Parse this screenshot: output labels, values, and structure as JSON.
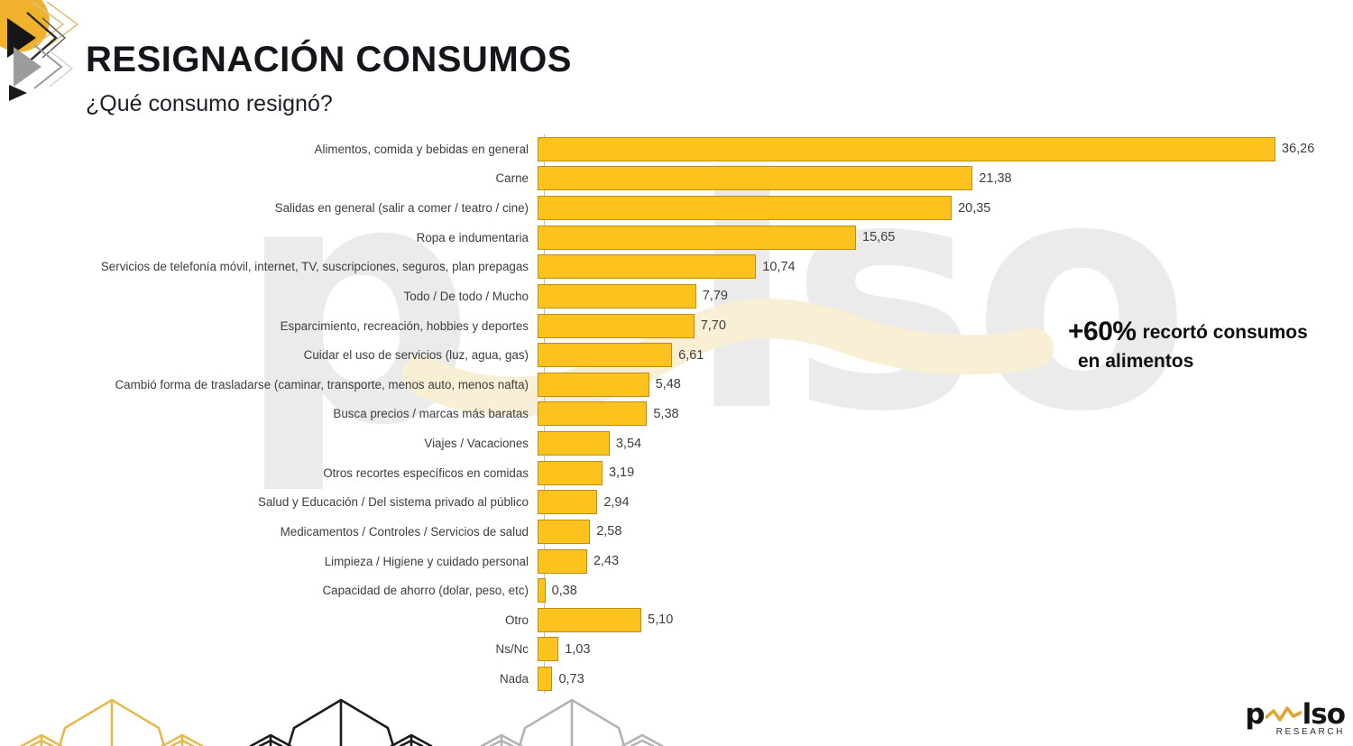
{
  "header": {
    "title": "RESIGNACIÓN CONSUMOS",
    "subtitle": "¿Qué consumo resignó?"
  },
  "annotation": {
    "highlight": "+60%",
    "line1": "recortó consumos",
    "line2": "en alimentos"
  },
  "watermark": {
    "left": "p",
    "right": "lso"
  },
  "brand": {
    "wordmark_left": "p",
    "wordmark_right": "lso",
    "research": "RESEARCH"
  },
  "colors": {
    "bar_fill": "#FCC21D",
    "bar_border": "#BD8E12",
    "axis_line": "#C2C2C2",
    "title_text": "#15151B",
    "label_text": "#3D3D3D",
    "watermark_gray": "#EBEBEB",
    "watermark_wave": "#F8EFD5",
    "brand_gold": "#DFA52F",
    "deco_yellow": "#E7BA4D",
    "deco_black": "#1B1B1B",
    "deco_gray": "#B3B3B3"
  },
  "chart_data": {
    "type": "bar",
    "orientation": "horizontal",
    "title": "RESIGNACIÓN CONSUMOS",
    "question": "¿Qué consumo resignó?",
    "xlim": [
      0,
      36.26
    ],
    "grid": false,
    "legend": false,
    "categories": [
      "Alimentos, comida y bebidas en general",
      "Carne",
      "Salidas en general (salir a comer / teatro / cine)",
      "Ropa e indumentaria",
      "Servicios de telefonía móvil, internet, TV, suscripciones, seguros, plan prepagas",
      "Todo / De todo / Mucho",
      "Esparcimiento, recreación, hobbies y deportes",
      "Cuidar el uso de servicios (luz, agua, gas)",
      "Cambió forma de trasladarse (caminar, transporte, menos auto, menos nafta)",
      "Busca precios / marcas más baratas",
      "Viajes / Vacaciones",
      "Otros recortes específicos en comidas",
      "Salud y Educación / Del sistema privado al público",
      "Medicamentos / Controles / Servicios de salud",
      "Limpieza / Higiene y cuidado personal",
      "Capacidad de ahorro (dolar, peso, etc)",
      "Otro",
      "Ns/Nc",
      "Nada"
    ],
    "values": [
      36.26,
      21.38,
      20.35,
      15.65,
      10.74,
      7.79,
      7.7,
      6.61,
      5.48,
      5.38,
      3.54,
      3.19,
      2.94,
      2.58,
      2.43,
      0.38,
      5.1,
      1.03,
      0.73
    ],
    "value_labels": [
      "36,26",
      "21,38",
      "20,35",
      "15,65",
      "10,74",
      "7,79",
      "7,70",
      "6,61",
      "5,48",
      "5,38",
      "3,54",
      "3,19",
      "2,94",
      "2,58",
      "2,43",
      "0,38",
      "5,10",
      "1,03",
      "0,73"
    ]
  }
}
